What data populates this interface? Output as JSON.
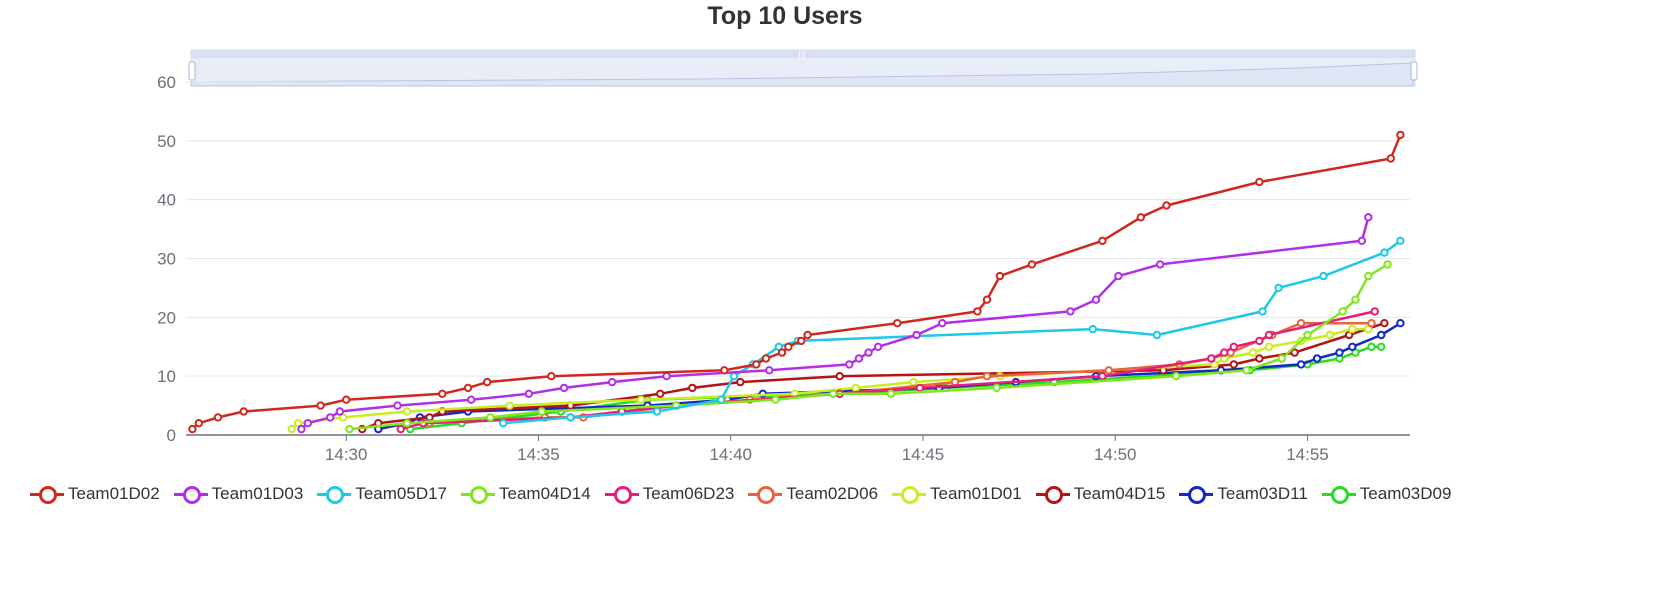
{
  "title": "Top 10 Users",
  "chart_data": {
    "type": "line",
    "title": "Top 10 Users",
    "xlabel": "",
    "ylabel": "",
    "x_axis_ticks": [
      "14:30",
      "14:35",
      "14:40",
      "14:45",
      "14:50",
      "14:55"
    ],
    "y_axis_ticks": [
      "0",
      "10",
      "20",
      "30",
      "40",
      "50",
      "60"
    ],
    "xlim": [
      "14:25:50",
      "14:57:40"
    ],
    "ylim": [
      0,
      60
    ],
    "grid": "horizontal",
    "legend_position": "bottom",
    "has_data_zoom_slider": true,
    "series": [
      {
        "name": "Team01D02",
        "color": "#d0281e",
        "points": [
          [
            "14:26:00",
            1
          ],
          [
            "14:26:10",
            2
          ],
          [
            "14:26:40",
            3
          ],
          [
            "14:27:20",
            4
          ],
          [
            "14:29:20",
            5
          ],
          [
            "14:30:00",
            6
          ],
          [
            "14:32:30",
            7
          ],
          [
            "14:33:10",
            8
          ],
          [
            "14:33:40",
            9
          ],
          [
            "14:35:20",
            10
          ],
          [
            "14:39:50",
            11
          ],
          [
            "14:40:40",
            12
          ],
          [
            "14:40:55",
            13
          ],
          [
            "14:41:20",
            14
          ],
          [
            "14:41:30",
            15
          ],
          [
            "14:41:50",
            16
          ],
          [
            "14:42:00",
            17
          ],
          [
            "14:44:20",
            19
          ],
          [
            "14:46:25",
            21
          ],
          [
            "14:46:40",
            23
          ],
          [
            "14:47:00",
            27
          ],
          [
            "14:47:50",
            29
          ],
          [
            "14:49:40",
            33
          ],
          [
            "14:50:40",
            37
          ],
          [
            "14:51:20",
            39
          ],
          [
            "14:53:45",
            43
          ],
          [
            "14:57:10",
            47
          ],
          [
            "14:57:25",
            51
          ]
        ]
      },
      {
        "name": "Team01D03",
        "color": "#b42ee8",
        "points": [
          [
            "14:28:50",
            1
          ],
          [
            "14:29:00",
            2
          ],
          [
            "14:29:35",
            3
          ],
          [
            "14:29:50",
            4
          ],
          [
            "14:31:20",
            5
          ],
          [
            "14:33:15",
            6
          ],
          [
            "14:34:45",
            7
          ],
          [
            "14:35:40",
            8
          ],
          [
            "14:36:55",
            9
          ],
          [
            "14:38:20",
            10
          ],
          [
            "14:41:00",
            11
          ],
          [
            "14:43:05",
            12
          ],
          [
            "14:43:20",
            13
          ],
          [
            "14:43:35",
            14
          ],
          [
            "14:43:50",
            15
          ],
          [
            "14:44:50",
            17
          ],
          [
            "14:45:30",
            19
          ],
          [
            "14:48:50",
            21
          ],
          [
            "14:49:30",
            23
          ],
          [
            "14:50:05",
            27
          ],
          [
            "14:51:10",
            29
          ],
          [
            "14:56:25",
            33
          ],
          [
            "14:56:35",
            37
          ]
        ]
      },
      {
        "name": "Team05D17",
        "color": "#1ec8e6",
        "points": [
          [
            "14:34:05",
            2
          ],
          [
            "14:35:50",
            3
          ],
          [
            "14:38:05",
            4
          ],
          [
            "14:39:45",
            6
          ],
          [
            "14:40:05",
            10
          ],
          [
            "14:40:35",
            12
          ],
          [
            "14:41:15",
            15
          ],
          [
            "14:41:45",
            16
          ],
          [
            "14:49:25",
            18
          ],
          [
            "14:51:05",
            17
          ],
          [
            "14:53:50",
            21
          ],
          [
            "14:54:15",
            25
          ],
          [
            "14:55:25",
            27
          ],
          [
            "14:57:00",
            31
          ],
          [
            "14:57:25",
            33
          ]
        ]
      },
      {
        "name": "Team04D14",
        "color": "#82e61e",
        "points": [
          [
            "14:30:05",
            1
          ],
          [
            "14:31:35",
            2
          ],
          [
            "14:33:45",
            3
          ],
          [
            "14:35:05",
            4
          ],
          [
            "14:38:35",
            5
          ],
          [
            "14:41:10",
            6
          ],
          [
            "14:42:40",
            7
          ],
          [
            "14:44:10",
            7
          ],
          [
            "14:46:55",
            8
          ],
          [
            "14:51:35",
            10
          ],
          [
            "14:53:25",
            11
          ],
          [
            "14:54:20",
            13
          ],
          [
            "14:55:00",
            17
          ],
          [
            "14:55:55",
            21
          ],
          [
            "14:56:15",
            23
          ],
          [
            "14:56:35",
            27
          ],
          [
            "14:57:05",
            29
          ]
        ]
      },
      {
        "name": "Team06D23",
        "color": "#e61e78",
        "points": [
          [
            "14:31:25",
            1
          ],
          [
            "14:32:00",
            2
          ],
          [
            "14:35:50",
            3
          ],
          [
            "14:37:10",
            4
          ],
          [
            "14:38:35",
            5
          ],
          [
            "14:42:50",
            7
          ],
          [
            "14:44:55",
            8
          ],
          [
            "14:49:40",
            10
          ],
          [
            "14:52:30",
            13
          ],
          [
            "14:52:50",
            14
          ],
          [
            "14:53:05",
            15
          ],
          [
            "14:53:45",
            16
          ],
          [
            "14:54:00",
            17
          ],
          [
            "14:56:45",
            21
          ]
        ]
      },
      {
        "name": "Team02D06",
        "color": "#e8643c",
        "points": [
          [
            "14:32:10",
            2
          ],
          [
            "14:35:10",
            3
          ],
          [
            "14:36:10",
            3
          ],
          [
            "14:38:35",
            5
          ],
          [
            "14:40:30",
            6
          ],
          [
            "14:42:50",
            7
          ],
          [
            "14:45:50",
            9
          ],
          [
            "14:46:40",
            10
          ],
          [
            "14:49:50",
            11
          ],
          [
            "14:51:40",
            12
          ],
          [
            "14:52:30",
            13
          ],
          [
            "14:53:00",
            14
          ],
          [
            "14:54:05",
            17
          ],
          [
            "14:54:50",
            19
          ],
          [
            "14:56:40",
            19
          ]
        ]
      },
      {
        "name": "Team01D01",
        "color": "#c8ee1e",
        "points": [
          [
            "14:28:35",
            1
          ],
          [
            "14:28:45",
            2
          ],
          [
            "14:29:55",
            3
          ],
          [
            "14:31:35",
            4
          ],
          [
            "14:34:15",
            5
          ],
          [
            "14:37:40",
            6
          ],
          [
            "14:41:40",
            7
          ],
          [
            "14:43:15",
            8
          ],
          [
            "14:44:45",
            9
          ],
          [
            "14:47:00",
            10
          ],
          [
            "14:52:35",
            12
          ],
          [
            "14:52:50",
            13
          ],
          [
            "14:53:35",
            14
          ],
          [
            "14:54:00",
            15
          ],
          [
            "14:54:50",
            16
          ],
          [
            "14:55:35",
            17
          ],
          [
            "14:56:10",
            18
          ],
          [
            "14:56:35",
            18
          ]
        ]
      },
      {
        "name": "Team04D15",
        "color": "#b41414",
        "points": [
          [
            "14:30:25",
            1
          ],
          [
            "14:30:50",
            2
          ],
          [
            "14:32:10",
            3
          ],
          [
            "14:32:30",
            4
          ],
          [
            "14:35:50",
            5
          ],
          [
            "14:38:10",
            7
          ],
          [
            "14:39:00",
            8
          ],
          [
            "14:40:15",
            9
          ],
          [
            "14:42:50",
            10
          ],
          [
            "14:51:15",
            11
          ],
          [
            "14:53:05",
            12
          ],
          [
            "14:53:45",
            13
          ],
          [
            "14:54:40",
            14
          ],
          [
            "14:56:05",
            17
          ],
          [
            "14:57:00",
            19
          ]
        ]
      },
      {
        "name": "Team03D11",
        "color": "#1428c8",
        "points": [
          [
            "14:30:50",
            1
          ],
          [
            "14:31:35",
            2
          ],
          [
            "14:31:55",
            3
          ],
          [
            "14:33:10",
            4
          ],
          [
            "14:37:50",
            5
          ],
          [
            "14:39:55",
            6
          ],
          [
            "14:40:50",
            7
          ],
          [
            "14:45:25",
            8
          ],
          [
            "14:47:25",
            9
          ],
          [
            "14:49:30",
            10
          ],
          [
            "14:52:45",
            11
          ],
          [
            "14:54:50",
            12
          ],
          [
            "14:55:15",
            13
          ],
          [
            "14:55:50",
            14
          ],
          [
            "14:56:10",
            15
          ],
          [
            "14:56:55",
            17
          ],
          [
            "14:57:25",
            19
          ]
        ]
      },
      {
        "name": "Team03D09",
        "color": "#28dc1e",
        "points": [
          [
            "14:31:40",
            1
          ],
          [
            "14:33:00",
            2
          ],
          [
            "14:35:35",
            4
          ],
          [
            "14:37:50",
            6
          ],
          [
            "14:42:50",
            7
          ],
          [
            "14:45:35",
            8
          ],
          [
            "14:48:25",
            9
          ],
          [
            "14:53:30",
            11
          ],
          [
            "14:55:00",
            12
          ],
          [
            "14:55:50",
            13
          ],
          [
            "14:56:15",
            14
          ],
          [
            "14:56:40",
            15
          ],
          [
            "14:56:55",
            15
          ]
        ]
      }
    ]
  }
}
